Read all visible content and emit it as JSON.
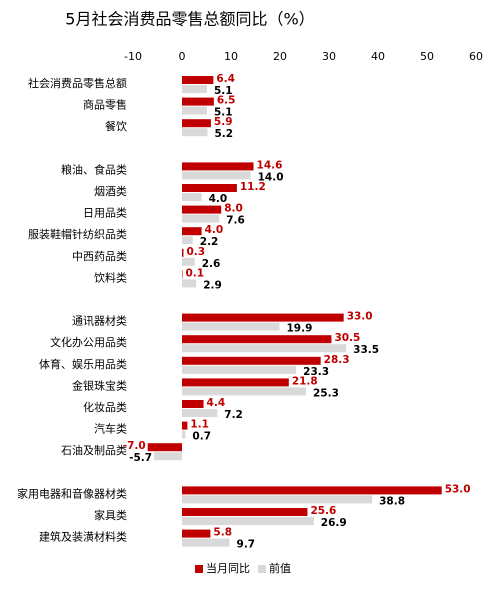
{
  "chart_data": {
    "type": "hbar",
    "title": "5月社会消费品零售总额同比（%）",
    "categories": [
      "社会消费品零售总额",
      "商品零售",
      "餐饮",
      null,
      "粮油、食品类",
      "烟酒类",
      "日用品类",
      "服装鞋帽针纺织品类",
      "中西药品类",
      "饮料类",
      null,
      "通讯器材类",
      "文化办公用品类",
      "体育、娱乐用品类",
      "金银珠宝类",
      "化妆品类",
      "汽车类",
      "石油及制品类",
      null,
      "家用电器和音像器材类",
      "家具类",
      "建筑及装潢材料类"
    ],
    "series": [
      {
        "name": "当月同比",
        "color": "#c00000",
        "label_color": "#c00000",
        "values": [
          6.4,
          6.5,
          5.9,
          null,
          14.6,
          11.2,
          8.0,
          4.0,
          0.3,
          0.1,
          null,
          33.0,
          30.5,
          28.3,
          21.8,
          4.4,
          1.1,
          -7.0,
          null,
          53.0,
          25.6,
          5.8
        ],
        "value_labels": [
          "6.4",
          "6.5",
          "5.9",
          null,
          "14.6",
          "11.2",
          "8.0",
          "4.0",
          "0.3",
          "0.1",
          null,
          "33.0",
          "30.5",
          "28.3",
          "21.8",
          "4.4",
          "1.1",
          "-7.0",
          null,
          "53.0",
          "25.6",
          "5.8"
        ]
      },
      {
        "name": "前值",
        "color": "#d9d9d9",
        "label_color": "#000000",
        "values": [
          5.1,
          5.1,
          5.2,
          null,
          14.0,
          4.0,
          7.6,
          2.2,
          2.6,
          2.9,
          null,
          19.9,
          33.5,
          23.3,
          25.3,
          7.2,
          0.7,
          -5.7,
          null,
          38.8,
          26.9,
          9.7
        ],
        "value_labels": [
          "5.1",
          "5.1",
          "5.2",
          null,
          "14.0",
          "4.0",
          "7.6",
          "2.2",
          "2.6",
          "2.9",
          null,
          "19.9",
          "33.5",
          "23.3",
          "25.3",
          "7.2",
          "0.7",
          "-5.7",
          null,
          "38.8",
          "26.9",
          "9.7"
        ]
      }
    ],
    "xlim": [
      -10,
      60
    ],
    "xticks": [
      -10,
      0,
      10,
      20,
      30,
      40,
      50,
      60
    ],
    "grid": false,
    "legend": "bottom"
  }
}
